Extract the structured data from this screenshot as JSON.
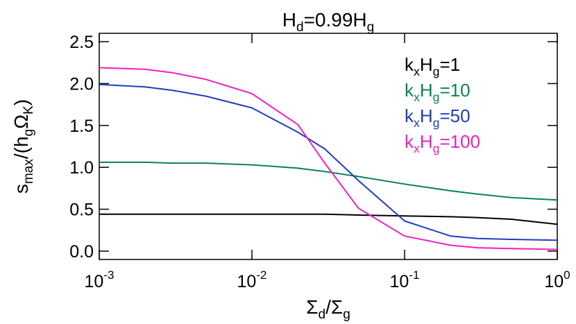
{
  "chart_data": {
    "type": "line",
    "title": [
      {
        "text": "H"
      },
      {
        "text": "d",
        "sub": true
      },
      {
        "text": "=0.99H"
      },
      {
        "text": "g",
        "sub": true
      }
    ],
    "x_label": [
      {
        "text": "Σ"
      },
      {
        "text": "d",
        "sub": true
      },
      {
        "text": "/Σ"
      },
      {
        "text": "g",
        "sub": true
      }
    ],
    "y_label": [
      {
        "text": "s"
      },
      {
        "text": "max",
        "sub": true
      },
      {
        "text": "/(h"
      },
      {
        "text": "g",
        "sub": true
      },
      {
        "text": "Ω"
      },
      {
        "text": "K",
        "sub": true
      },
      {
        "text": ")"
      }
    ],
    "x": [
      0.001,
      0.002,
      0.003,
      0.005,
      0.01,
      0.02,
      0.03,
      0.05,
      0.1,
      0.2,
      0.3,
      0.5,
      1
    ],
    "xscale": "log",
    "xlim": [
      0.001,
      1
    ],
    "xticks": [
      {
        "value": 0.001,
        "label": [
          "10",
          "-3"
        ]
      },
      {
        "value": 0.01,
        "label": [
          "10",
          "-2"
        ]
      },
      {
        "value": 0.1,
        "label": [
          "10",
          "-1"
        ]
      },
      {
        "value": 1,
        "label": [
          "10",
          "0"
        ]
      }
    ],
    "ylim": [
      -0.1,
      2.6
    ],
    "yticks": [
      {
        "value": 0,
        "label": "0.0"
      },
      {
        "value": 0.5,
        "label": "0.5"
      },
      {
        "value": 1,
        "label": "1.0"
      },
      {
        "value": 1.5,
        "label": "1.5"
      },
      {
        "value": 2,
        "label": "2.0"
      },
      {
        "value": 2.5,
        "label": "2.5"
      }
    ],
    "legend_position": "upper right",
    "series": [
      {
        "name": [
          {
            "text": "k"
          },
          {
            "text": "x",
            "sub": true
          },
          {
            "text": "H"
          },
          {
            "text": "g",
            "sub": true
          },
          {
            "text": "=1"
          }
        ],
        "color": "#000000",
        "values": [
          0.44,
          0.44,
          0.44,
          0.44,
          0.44,
          0.44,
          0.44,
          0.43,
          0.42,
          0.41,
          0.4,
          0.38,
          0.32
        ]
      },
      {
        "name": [
          {
            "text": "k"
          },
          {
            "text": "x",
            "sub": true
          },
          {
            "text": "H"
          },
          {
            "text": "g",
            "sub": true
          },
          {
            "text": "=10"
          }
        ],
        "color": "#0a8255",
        "values": [
          1.06,
          1.06,
          1.05,
          1.05,
          1.03,
          0.99,
          0.95,
          0.89,
          0.8,
          0.72,
          0.68,
          0.64,
          0.61
        ]
      },
      {
        "name": [
          {
            "text": "k"
          },
          {
            "text": "x",
            "sub": true
          },
          {
            "text": "H"
          },
          {
            "text": "g",
            "sub": true
          },
          {
            "text": "=50"
          }
        ],
        "color": "#1e3cc0",
        "values": [
          1.99,
          1.96,
          1.92,
          1.85,
          1.71,
          1.42,
          1.22,
          0.84,
          0.36,
          0.18,
          0.15,
          0.14,
          0.13
        ]
      },
      {
        "name": [
          {
            "text": "k"
          },
          {
            "text": "x",
            "sub": true
          },
          {
            "text": "H"
          },
          {
            "text": "g",
            "sub": true
          },
          {
            "text": "=100"
          }
        ],
        "color": "#f01ec0",
        "values": [
          2.19,
          2.17,
          2.13,
          2.05,
          1.88,
          1.51,
          1.05,
          0.51,
          0.18,
          0.07,
          0.04,
          0.03,
          0.02
        ]
      }
    ]
  }
}
